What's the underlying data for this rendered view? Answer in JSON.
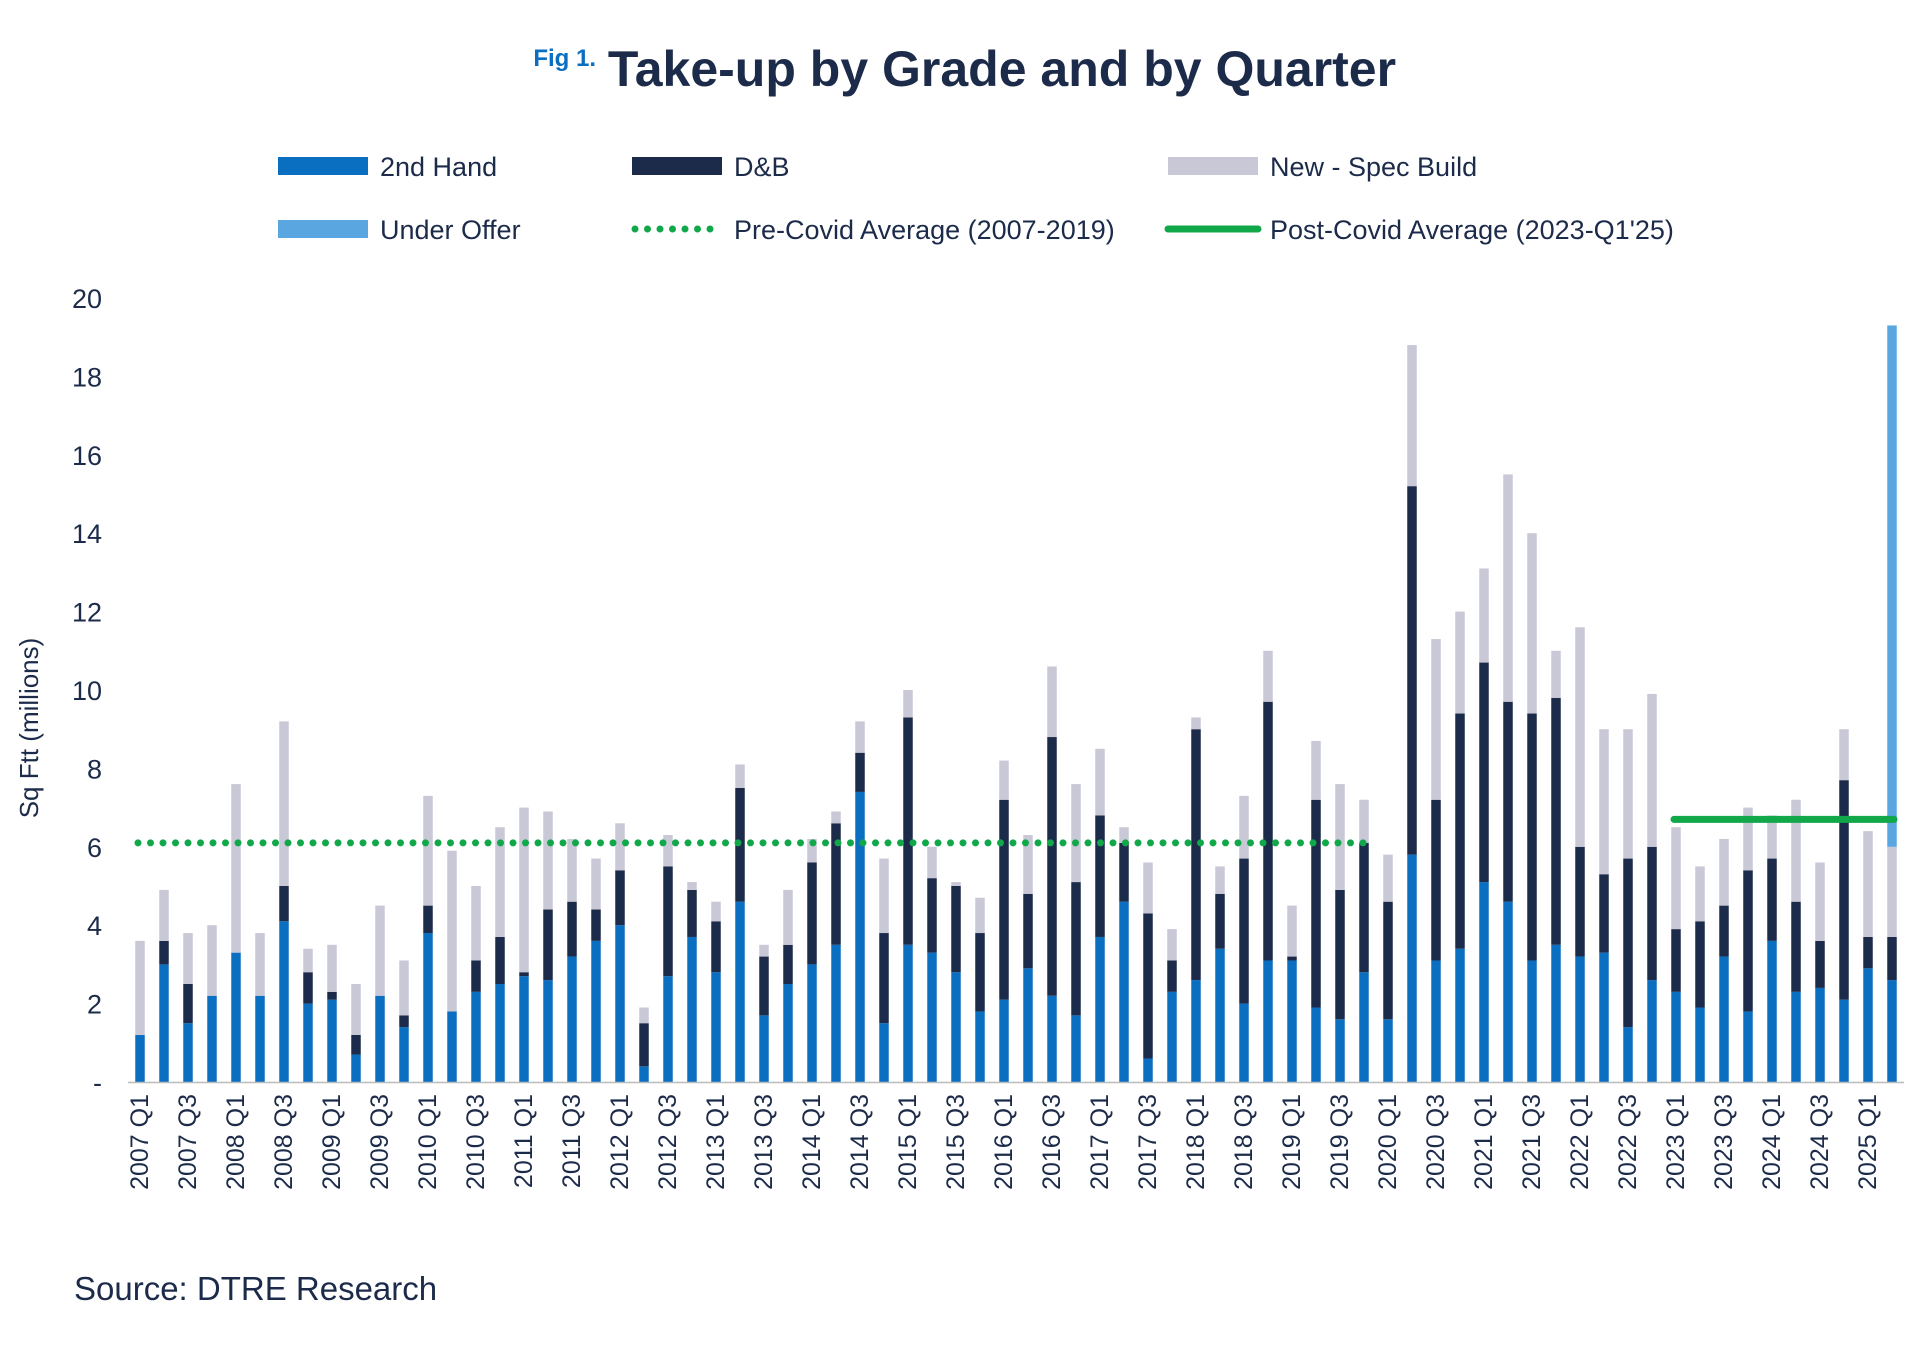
{
  "chart_data": {
    "type": "bar",
    "stacked": true,
    "fig_label": "Fig 1.",
    "title": "Take-up by Grade and by Quarter",
    "ylabel": "Sq Ftt (millions)",
    "ylim": [
      0,
      20
    ],
    "yticks": [
      {
        "value": 0,
        "label": "-"
      },
      {
        "value": 2,
        "label": "2"
      },
      {
        "value": 4,
        "label": "4"
      },
      {
        "value": 6,
        "label": "6"
      },
      {
        "value": 8,
        "label": "8"
      },
      {
        "value": 10,
        "label": "10"
      },
      {
        "value": 12,
        "label": "12"
      },
      {
        "value": 14,
        "label": "14"
      },
      {
        "value": 16,
        "label": "16"
      },
      {
        "value": 18,
        "label": "18"
      },
      {
        "value": 20,
        "label": "20"
      }
    ],
    "categories": [
      "2007 Q1",
      "2007 Q2",
      "2007 Q3",
      "2007 Q4",
      "2008 Q1",
      "2008 Q2",
      "2008 Q3",
      "2008 Q4",
      "2009 Q1",
      "2009 Q2",
      "2009 Q3",
      "2009 Q4",
      "2010 Q1",
      "2010 Q2",
      "2010 Q3",
      "2010 Q4",
      "2011 Q1",
      "2011 Q2",
      "2011 Q3",
      "2011 Q4",
      "2012 Q1",
      "2012 Q2",
      "2012 Q3",
      "2012 Q4",
      "2013 Q1",
      "2013 Q2",
      "2013 Q3",
      "2013 Q4",
      "2014 Q1",
      "2014 Q2",
      "2014 Q3",
      "2014 Q4",
      "2015 Q1",
      "2015 Q2",
      "2015 Q3",
      "2015 Q4",
      "2016 Q1",
      "2016 Q2",
      "2016 Q3",
      "2016 Q4",
      "2017 Q1",
      "2017 Q2",
      "2017 Q3",
      "2017 Q4",
      "2018 Q1",
      "2018 Q2",
      "2018 Q3",
      "2018 Q4",
      "2019 Q1",
      "2019 Q2",
      "2019 Q3",
      "2019 Q4",
      "2020 Q1",
      "2020 Q2",
      "2020 Q3",
      "2020 Q4",
      "2021 Q1",
      "2021 Q2",
      "2021 Q3",
      "2021 Q4",
      "2022 Q1",
      "2022 Q2",
      "2022 Q3",
      "2022 Q4",
      "2023 Q1",
      "2023 Q2",
      "2023 Q3",
      "2023 Q4",
      "2024 Q1",
      "2024 Q2",
      "2024 Q3",
      "2024 Q4",
      "2025 Q1",
      "2025 Q2"
    ],
    "x_tick_labels": [
      "2007 Q1",
      "",
      "2007 Q3",
      "",
      "2008 Q1",
      "",
      "2008 Q3",
      "",
      "2009 Q1",
      "",
      "2009 Q3",
      "",
      "2010 Q1",
      "",
      "2010 Q3",
      "",
      "2011 Q1",
      "",
      "2011 Q3",
      "",
      "2012 Q1",
      "",
      "2012 Q3",
      "",
      "2013 Q1",
      "",
      "2013 Q3",
      "",
      "2014 Q1",
      "",
      "2014 Q3",
      "",
      "2015 Q1",
      "",
      "2015 Q3",
      "",
      "2016 Q1",
      "",
      "2016 Q3",
      "",
      "2017 Q1",
      "",
      "2017 Q3",
      "",
      "2018 Q1",
      "",
      "2018 Q3",
      "",
      "2019 Q1",
      "",
      "2019 Q3",
      "",
      "2020 Q1",
      "",
      "2020 Q3",
      "",
      "2021 Q1",
      "",
      "2021 Q3",
      "",
      "2022 Q1",
      "",
      "2022 Q3",
      "",
      "2023 Q1",
      "",
      "2023 Q3",
      "",
      "2024 Q1",
      "",
      "2024 Q3",
      "",
      "2025 Q1",
      ""
    ],
    "series": [
      {
        "name": "2nd Hand",
        "color": "#0b6fc1",
        "values": [
          1.2,
          3.0,
          1.5,
          2.2,
          3.3,
          2.2,
          4.1,
          2.0,
          2.1,
          0.7,
          2.2,
          1.4,
          3.8,
          1.8,
          2.3,
          2.5,
          2.7,
          2.6,
          3.2,
          3.6,
          4.0,
          0.4,
          2.7,
          3.7,
          2.8,
          4.6,
          1.7,
          2.5,
          3.0,
          3.5,
          7.4,
          1.5,
          3.5,
          3.3,
          2.8,
          1.8,
          2.1,
          2.9,
          2.2,
          1.7,
          3.7,
          4.6,
          0.6,
          2.3,
          2.6,
          3.4,
          2.0,
          3.1,
          3.1,
          1.9,
          1.6,
          2.8,
          1.6,
          5.8,
          3.1,
          3.4,
          5.1,
          4.6,
          3.1,
          3.5,
          3.2,
          3.3,
          1.4,
          2.6,
          2.3,
          1.9,
          3.2,
          1.8,
          3.6,
          2.3,
          2.4,
          2.1,
          2.9,
          2.6
        ]
      },
      {
        "name": "D&B",
        "color": "#1c2b4a",
        "values": [
          0.0,
          0.6,
          1.0,
          0.0,
          0.0,
          0.0,
          0.9,
          0.8,
          0.2,
          0.5,
          0.0,
          0.3,
          0.7,
          0.0,
          0.8,
          1.2,
          0.1,
          1.8,
          1.4,
          0.8,
          1.4,
          1.1,
          2.8,
          1.2,
          1.3,
          2.9,
          1.5,
          1.0,
          2.6,
          3.1,
          1.0,
          2.3,
          5.8,
          1.9,
          2.2,
          2.0,
          5.1,
          1.9,
          6.6,
          3.4,
          3.1,
          1.5,
          3.7,
          0.8,
          6.4,
          1.4,
          3.7,
          6.6,
          0.1,
          5.3,
          3.3,
          3.3,
          3.0,
          9.4,
          4.1,
          6.0,
          5.6,
          5.1,
          6.3,
          6.3,
          2.8,
          2.0,
          4.3,
          3.4,
          1.6,
          2.2,
          1.3,
          3.6,
          2.1,
          2.3,
          1.2,
          5.6,
          0.8,
          1.1
        ]
      },
      {
        "name": "New - Spec Build",
        "color": "#c9c8d6",
        "values": [
          2.4,
          1.3,
          1.3,
          1.8,
          4.3,
          1.6,
          4.2,
          0.6,
          1.2,
          1.3,
          2.3,
          1.4,
          2.8,
          4.1,
          1.9,
          2.8,
          4.2,
          2.5,
          1.6,
          1.3,
          1.2,
          0.4,
          0.8,
          0.2,
          0.5,
          0.6,
          0.3,
          1.4,
          0.6,
          0.3,
          0.8,
          1.9,
          0.7,
          0.8,
          0.1,
          0.9,
          1.0,
          1.5,
          1.8,
          2.5,
          1.7,
          0.4,
          1.3,
          0.8,
          0.3,
          0.7,
          1.6,
          1.3,
          1.3,
          1.5,
          2.7,
          1.1,
          1.2,
          3.6,
          4.1,
          2.6,
          2.4,
          5.8,
          4.6,
          1.2,
          5.6,
          3.7,
          3.3,
          3.9,
          2.6,
          1.4,
          1.7,
          1.6,
          1.1,
          2.6,
          2.0,
          1.3,
          2.7,
          2.3
        ]
      },
      {
        "name": "Under Offer",
        "color": "#5aa6e0",
        "values": [
          0,
          0,
          0,
          0,
          0,
          0,
          0,
          0,
          0,
          0,
          0,
          0,
          0,
          0,
          0,
          0,
          0,
          0,
          0,
          0,
          0,
          0,
          0,
          0,
          0,
          0,
          0,
          0,
          0,
          0,
          0,
          0,
          0,
          0,
          0,
          0,
          0,
          0,
          0,
          0,
          0,
          0,
          0,
          0,
          0,
          0,
          0,
          0,
          0,
          0,
          0,
          0,
          0,
          0,
          0,
          0,
          0,
          0,
          0,
          0,
          0,
          0,
          0,
          0,
          0,
          0,
          0,
          0,
          0,
          0,
          0,
          0,
          0,
          13.3
        ]
      }
    ],
    "lines": [
      {
        "name": "Pre-Covid Average (2007-2019)",
        "color": "#11a84a",
        "style": "dotted",
        "value": 6.1,
        "from": "2007 Q1",
        "to": "2019 Q4"
      },
      {
        "name": "Post-Covid Average (2023-Q1'25)",
        "color": "#11a84a",
        "style": "solid",
        "value": 6.7,
        "from": "2023 Q1",
        "to": "2025 Q2"
      }
    ],
    "legend": [
      {
        "name": "2nd Hand",
        "color": "#0b6fc1",
        "style": "bar"
      },
      {
        "name": "D&B",
        "color": "#1c2b4a",
        "style": "bar"
      },
      {
        "name": "New - Spec Build",
        "color": "#c9c8d6",
        "style": "bar"
      },
      {
        "name": "Under Offer",
        "color": "#5aa6e0",
        "style": "bar"
      },
      {
        "name": "Pre-Covid Average (2007-2019)",
        "color": "#11a84a",
        "style": "dotted"
      },
      {
        "name": "Post-Covid Average (2023-Q1'25)",
        "color": "#11a84a",
        "style": "solid"
      }
    ],
    "legend_position": "top",
    "source": "Source: DTRE Research",
    "colors": {
      "title": "#1c2b4a",
      "fig_label": "#0b6fc1",
      "text": "#1c2b4a",
      "axis": "#555555"
    }
  }
}
